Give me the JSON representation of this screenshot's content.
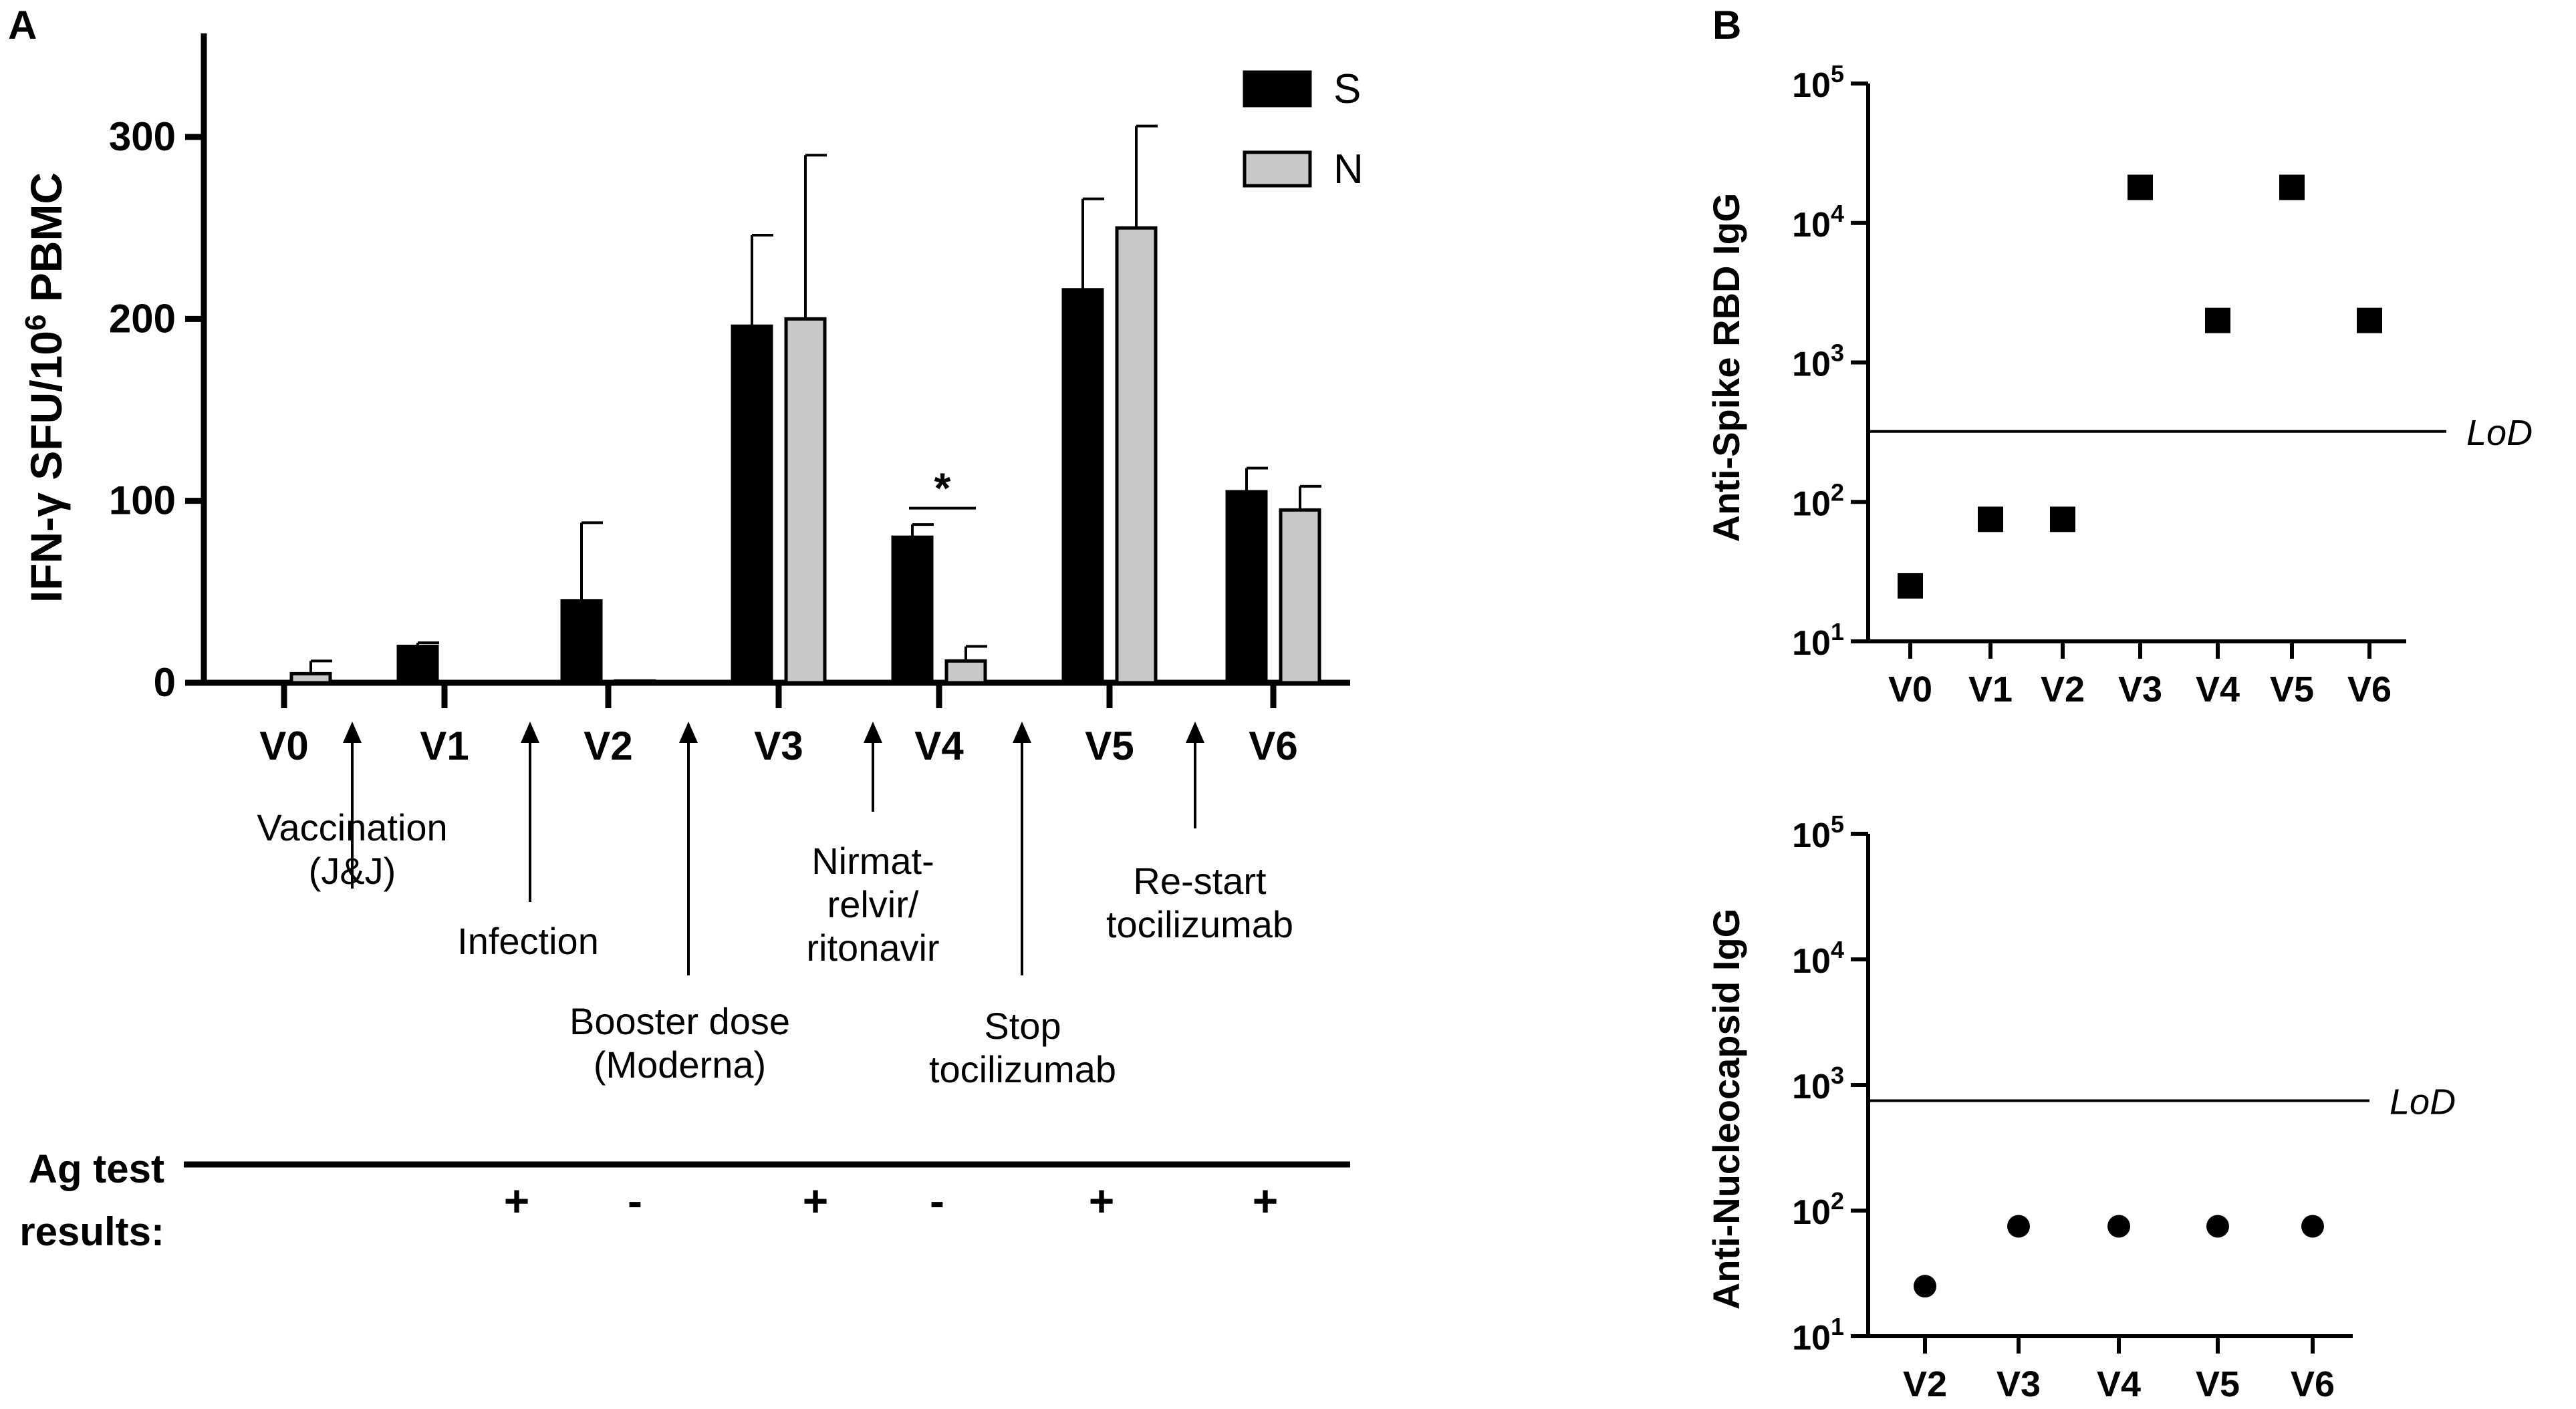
{
  "chart_data": [
    {
      "panel": "A",
      "type": "bar",
      "ylabel": "IFN-γ SFU/10",
      "ylabel_sup": "6",
      "ylabel_tail": " PBMC",
      "ylim": [
        0,
        350
      ],
      "yticks": [
        0,
        100,
        200,
        300
      ],
      "categories": [
        "V0",
        "V1",
        "V2",
        "V3",
        "V4",
        "V5",
        "V6"
      ],
      "series": [
        {
          "name": "S",
          "color": "#000000",
          "values": [
            0,
            20,
            45,
            196,
            80,
            216,
            105
          ],
          "errors": [
            0,
            2,
            43,
            50,
            7,
            50,
            13
          ]
        },
        {
          "name": "N",
          "color": "#c8c8c8",
          "values": [
            5,
            0,
            1,
            200,
            12,
            250,
            95
          ],
          "errors": [
            7,
            0,
            0,
            90,
            8,
            56,
            13
          ]
        }
      ],
      "significance": {
        "between": "V4",
        "label": "*"
      },
      "events": [
        {
          "label_lines": [
            "Vaccination",
            "(J&J)"
          ],
          "between": "V0-V1"
        },
        {
          "label_lines": [
            "Infection"
          ],
          "between": "V1-V2"
        },
        {
          "label_lines": [
            "Booster dose",
            "(Moderna)"
          ],
          "between": "V2-V3"
        },
        {
          "label_lines": [
            "Nirmat-",
            "relvir/",
            "ritonavir"
          ],
          "between": "V3-V4"
        },
        {
          "label_lines": [
            "Stop",
            "tocilizumab"
          ],
          "between": "V4-V5"
        },
        {
          "label_lines": [
            "Re-start",
            "tocilizumab"
          ],
          "between": "V5-V6"
        }
      ],
      "ag_test": {
        "label_lines": [
          "Ag test",
          "results:"
        ],
        "results": [
          {
            "between": "V1-V2",
            "value": "+"
          },
          {
            "between": "V2-V3",
            "value": "-"
          },
          {
            "at": "V3",
            "value": "+"
          },
          {
            "at": "V4",
            "value": "-"
          },
          {
            "at": "V5",
            "value": "+"
          },
          {
            "at": "V6",
            "value": "+"
          }
        ]
      }
    },
    {
      "panel": "B",
      "type": "scatter",
      "ylabel": "Anti-Spike RBD IgG",
      "yscale": "log",
      "yticks": [
        1,
        2,
        3,
        4,
        5
      ],
      "marker": "square",
      "categories": [
        "V0",
        "V1",
        "V2",
        "V3",
        "V4",
        "V5",
        "V6"
      ],
      "values": [
        25,
        75,
        75,
        18000,
        2000,
        18000,
        2000
      ],
      "lod": {
        "value": 320,
        "label": "LoD"
      }
    },
    {
      "panel": "B",
      "type": "scatter",
      "ylabel": "Anti-Nucleocapsid IgG",
      "yscale": "log",
      "yticks": [
        1,
        2,
        3,
        4,
        5
      ],
      "marker": "circle",
      "categories": [
        "V2",
        "V3",
        "V4",
        "V5",
        "V6"
      ],
      "values": [
        25,
        75,
        75,
        75,
        75
      ],
      "lod": {
        "value": 750,
        "label": "LoD"
      }
    }
  ],
  "panel_labels": [
    "A",
    "B"
  ]
}
